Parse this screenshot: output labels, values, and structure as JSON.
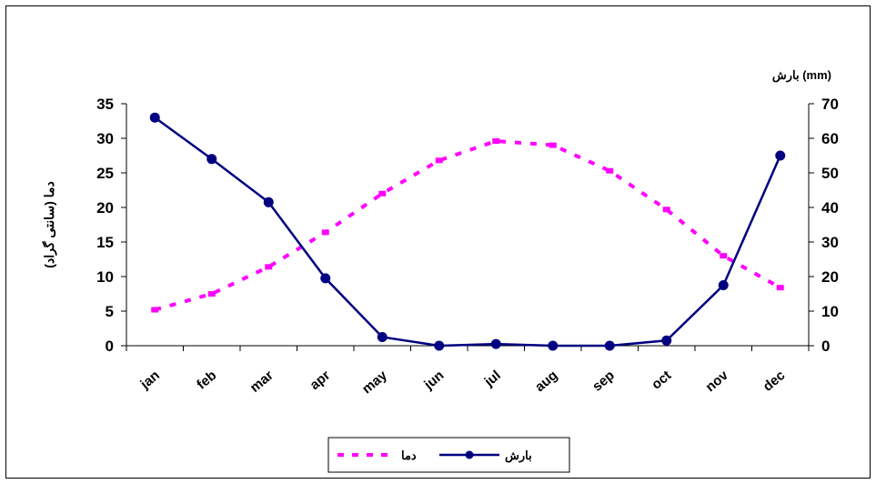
{
  "chart_data": {
    "type": "line",
    "categories": [
      "jan",
      "feb",
      "mar",
      "apr",
      "may",
      "jun",
      "jul",
      "aug",
      "sep",
      "oct",
      "nov",
      "dec"
    ],
    "y_left": {
      "label": "دما (سانتی گراد)",
      "ylim": [
        0,
        35
      ],
      "ticks": [
        "0",
        "5",
        "10",
        "15",
        "20",
        "25",
        "30",
        "35"
      ]
    },
    "y_right": {
      "label": "بارش (mm)",
      "ylim": [
        0,
        70
      ],
      "ticks": [
        "0",
        "10",
        "20",
        "30",
        "40",
        "50",
        "60",
        "70"
      ]
    },
    "series": [
      {
        "name": "دما",
        "axis": "left",
        "style": "dashed",
        "color": "#ff00ff",
        "values": [
          5.2,
          7.5,
          11.4,
          16.4,
          22,
          26.8,
          29.6,
          29,
          25.3,
          19.7,
          13,
          8.4
        ]
      },
      {
        "name": "بارش",
        "axis": "right",
        "style": "solid-marker",
        "color": "#000080",
        "values": [
          66,
          54,
          41.5,
          19.5,
          2.5,
          0,
          0.5,
          0,
          0,
          1.5,
          17.5,
          55
        ]
      }
    ],
    "legend_position": "bottom",
    "grid": false
  }
}
